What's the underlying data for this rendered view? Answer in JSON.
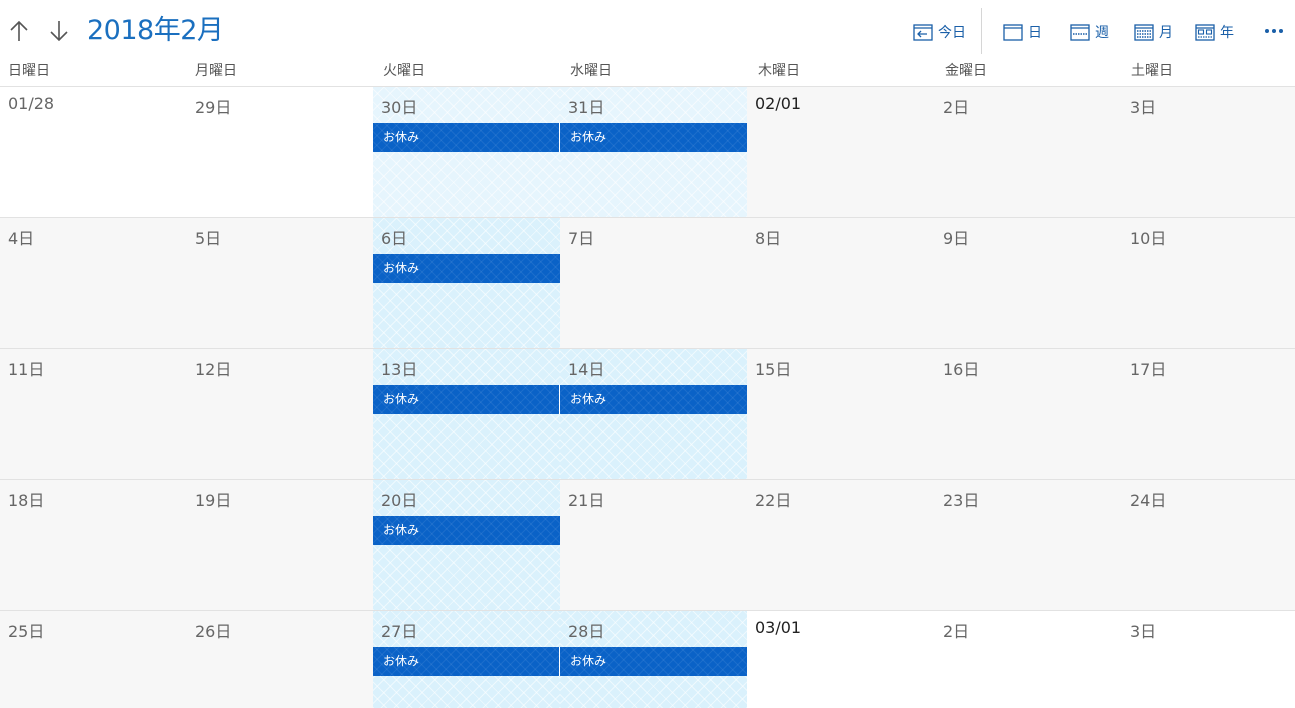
{
  "header": {
    "title": "2018年2月",
    "toolbar": {
      "today": "今日",
      "day": "日",
      "week": "週",
      "month": "月",
      "year": "年"
    }
  },
  "weekdays": [
    "日曜日",
    "月曜日",
    "火曜日",
    "水曜日",
    "木曜日",
    "金曜日",
    "土曜日"
  ],
  "event_label": "お休み",
  "weeks": [
    [
      "01/28",
      "29日",
      "30日",
      "31日",
      "02/01",
      "2日",
      "3日"
    ],
    [
      "4日",
      "5日",
      "6日",
      "7日",
      "8日",
      "9日",
      "10日"
    ],
    [
      "11日",
      "12日",
      "13日",
      "14日",
      "15日",
      "16日",
      "17日"
    ],
    [
      "18日",
      "19日",
      "20日",
      "21日",
      "22日",
      "23日",
      "24日"
    ],
    [
      "25日",
      "26日",
      "27日",
      "28日",
      "03/01",
      "2日",
      "3日"
    ]
  ],
  "events": [
    {
      "week": 0,
      "day": 2,
      "label": "お休み"
    },
    {
      "week": 0,
      "day": 3,
      "label": "お休み"
    },
    {
      "week": 1,
      "day": 2,
      "label": "お休み"
    },
    {
      "week": 2,
      "day": 2,
      "label": "お休み"
    },
    {
      "week": 2,
      "day": 3,
      "label": "お休み"
    },
    {
      "week": 3,
      "day": 2,
      "label": "お休み"
    },
    {
      "week": 4,
      "day": 2,
      "label": "お休み"
    },
    {
      "week": 4,
      "day": 3,
      "label": "お休み"
    }
  ],
  "colors": {
    "accent": "#1a6fbf",
    "event": "#0a62c7",
    "holiday_bg": "#daf1fc",
    "current_month_bg": "#f7f7f7",
    "other_month_bg": "#ffffff"
  }
}
